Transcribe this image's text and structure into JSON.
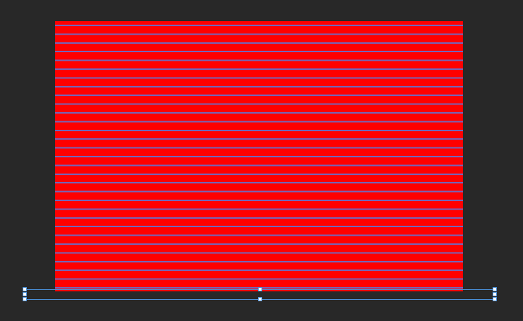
{
  "canvas": {
    "background_color": "#282828",
    "shape": {
      "fill_color": "#ff0000",
      "stripe_color": "#5a78dc"
    },
    "selection": {
      "color": "#4a90d9",
      "handle_color": "#ffffff"
    }
  }
}
